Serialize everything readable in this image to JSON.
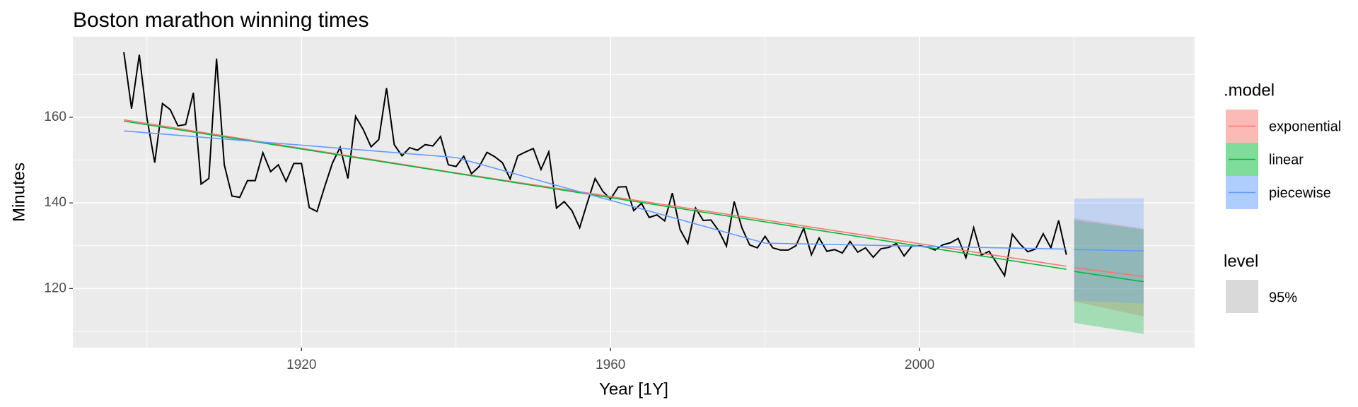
{
  "chart_data": {
    "type": "line",
    "title": "Boston marathon winning times",
    "x_label": "Year [1Y]",
    "y_label": "Minutes",
    "xlim": [
      1890.4,
      2035.6
    ],
    "ylim": [
      106.2,
      178.8
    ],
    "xticks": [
      1920,
      1960,
      2000
    ],
    "yticks": [
      120,
      140,
      160
    ],
    "x_minor": [
      1900,
      1940,
      1980,
      2020
    ],
    "y_minor": [
      110,
      130,
      150,
      170
    ],
    "grid": true,
    "observed": {
      "color": "#000000",
      "x": [
        1897,
        1898,
        1899,
        1900,
        1901,
        1902,
        1903,
        1904,
        1905,
        1906,
        1907,
        1908,
        1909,
        1910,
        1911,
        1912,
        1913,
        1914,
        1915,
        1916,
        1917,
        1918,
        1919,
        1920,
        1921,
        1922,
        1923,
        1924,
        1925,
        1926,
        1927,
        1928,
        1929,
        1930,
        1931,
        1932,
        1933,
        1934,
        1935,
        1936,
        1937,
        1938,
        1939,
        1940,
        1941,
        1942,
        1943,
        1944,
        1945,
        1946,
        1947,
        1948,
        1949,
        1950,
        1951,
        1952,
        1953,
        1954,
        1955,
        1956,
        1957,
        1958,
        1959,
        1960,
        1961,
        1962,
        1963,
        1964,
        1965,
        1966,
        1967,
        1968,
        1969,
        1970,
        1971,
        1972,
        1973,
        1974,
        1975,
        1976,
        1977,
        1978,
        1979,
        1980,
        1981,
        1982,
        1983,
        1984,
        1985,
        1986,
        1987,
        1988,
        1989,
        1990,
        1991,
        1992,
        1993,
        1994,
        1995,
        1996,
        1997,
        1998,
        1999,
        2000,
        2001,
        2002,
        2003,
        2004,
        2005,
        2006,
        2007,
        2008,
        2009,
        2010,
        2011,
        2012,
        2013,
        2014,
        2015,
        2016,
        2017,
        2018,
        2019
      ],
      "values": [
        175.2,
        162.0,
        174.6,
        159.7,
        149.4,
        163.2,
        161.8,
        158.0,
        158.3,
        165.7,
        144.4,
        145.7,
        173.7,
        148.9,
        141.6,
        141.3,
        145.2,
        145.2,
        151.7,
        147.3,
        148.9,
        145.0,
        149.2,
        149.2,
        138.9,
        138.0,
        143.8,
        149.3,
        153.0,
        145.7,
        160.2,
        157.1,
        153.1,
        154.8,
        166.8,
        153.6,
        151.0,
        152.9,
        152.3,
        153.6,
        153.3,
        155.5,
        148.9,
        148.5,
        150.9,
        146.8,
        148.5,
        151.8,
        150.8,
        149.4,
        145.6,
        151.0,
        151.9,
        152.7,
        147.8,
        151.9,
        138.8,
        140.3,
        138.2,
        134.2,
        140.1,
        145.7,
        142.7,
        140.9,
        143.7,
        143.8,
        138.2,
        139.9,
        136.6,
        137.2,
        135.8,
        142.3,
        133.8,
        130.5,
        138.8,
        135.9,
        136.0,
        133.5,
        129.9,
        140.3,
        134.2,
        130.2,
        129.5,
        132.2,
        129.5,
        129.0,
        129.0,
        130.0,
        134.1,
        127.9,
        131.8,
        128.7,
        129.1,
        128.3,
        131.0,
        128.5,
        129.5,
        127.3,
        129.3,
        129.6,
        130.5,
        127.6,
        129.9,
        130.0,
        129.7,
        129.0,
        130.2,
        130.7,
        131.7,
        127.2,
        134.2,
        127.8,
        128.7,
        125.9,
        123.0,
        132.7,
        130.4,
        128.6,
        129.2,
        132.8,
        129.5,
        135.9,
        127.9
      ]
    },
    "legend_title": ".model",
    "series": [
      {
        "name": "exponential",
        "color": "#F8766D",
        "fitted": {
          "x": [
            1897,
            1940,
            1980,
            2019
          ],
          "values": [
            159.4,
            147.0,
            136.0,
            125.2
          ]
        },
        "forecast": {
          "x": [
            2020,
            2029
          ],
          "values": [
            124.9,
            122.8
          ],
          "lower": [
            117.0,
            113.5
          ],
          "upper": [
            136.5,
            134.0
          ]
        }
      },
      {
        "name": "linear",
        "color": "#00BA38",
        "fitted": {
          "x": [
            1897,
            2019
          ],
          "values": [
            159.1,
            124.5
          ]
        },
        "forecast": {
          "x": [
            2020,
            2029
          ],
          "values": [
            124.0,
            121.6
          ],
          "lower": [
            112.0,
            109.4
          ],
          "upper": [
            136.0,
            133.8
          ]
        }
      },
      {
        "name": "piecewise",
        "color": "#619CFF",
        "fitted": {
          "x": [
            1897,
            1940,
            1980,
            2019
          ],
          "values": [
            156.8,
            150.6,
            130.6,
            129.2
          ]
        },
        "forecast": {
          "x": [
            2020,
            2029
          ],
          "values": [
            129.1,
            128.8
          ],
          "lower": [
            117.2,
            116.5
          ],
          "upper": [
            141.0,
            141.1
          ]
        }
      }
    ],
    "level_legend": {
      "title": "level",
      "label": "95%"
    }
  }
}
